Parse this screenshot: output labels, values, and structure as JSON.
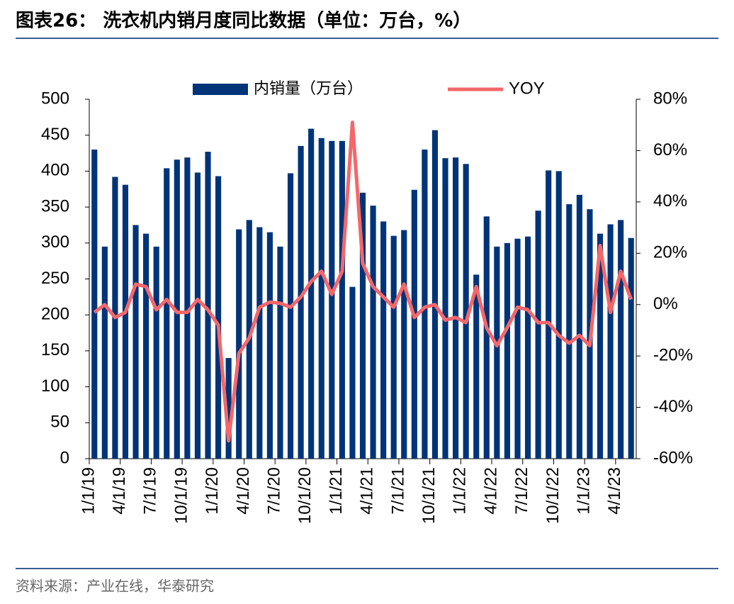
{
  "chart_data": {
    "type": "bar-line",
    "title": "图表26： 洗衣机内销月度同比数据（单位：万台，%）",
    "source": "资料来源：产业在线，华泰研究",
    "categories": [
      "1/1/19",
      null,
      null,
      "4/1/19",
      null,
      null,
      "7/1/19",
      null,
      null,
      "10/1/19",
      null,
      null,
      "1/1/20",
      null,
      null,
      "4/1/20",
      null,
      null,
      "7/1/20",
      null,
      null,
      "10/1/20",
      null,
      null,
      "1/1/21",
      null,
      null,
      "4/1/21",
      null,
      null,
      "7/1/21",
      null,
      null,
      "10/1/21",
      null,
      null,
      "1/1/22",
      null,
      null,
      "4/1/22",
      null,
      null,
      "7/1/22",
      null,
      null,
      "10/1/22",
      null,
      null,
      "1/1/23",
      null,
      null,
      "4/1/23",
      null
    ],
    "series": [
      {
        "name": "内销量（万台）",
        "color": "#003478",
        "type": "bar",
        "values": [
          430,
          295,
          392,
          381,
          325,
          313,
          295,
          404,
          416,
          419,
          398,
          427,
          393,
          140,
          319,
          332,
          322,
          315,
          295,
          397,
          435,
          459,
          446,
          442,
          442,
          239,
          370,
          352,
          330,
          310,
          318,
          374,
          430,
          457,
          418,
          419,
          410,
          256,
          337,
          295,
          300,
          306,
          309,
          345,
          401,
          400,
          354,
          367,
          347,
          313,
          326,
          332,
          307
        ]
      },
      {
        "name": "YOY",
        "color": "#f4676a",
        "type": "line",
        "axis": "y2",
        "values": [
          -3,
          0,
          -5,
          -3,
          8,
          7,
          -2,
          2,
          -3,
          -3,
          2,
          -2,
          -8,
          -53,
          -19,
          -13,
          -1,
          1,
          0.5,
          -1,
          3,
          9,
          13,
          4,
          13,
          71,
          16,
          7,
          3,
          -1,
          8,
          -5,
          -1,
          0,
          -6,
          -5,
          -7,
          7,
          -9,
          -16,
          -9,
          -1,
          -2,
          -7,
          -7,
          -12,
          -15,
          -12,
          -16,
          23,
          -3,
          13,
          2
        ]
      }
    ],
    "ylim": [
      0,
      500
    ],
    "yticks": [
      0,
      50,
      100,
      150,
      200,
      250,
      300,
      350,
      400,
      450,
      500
    ],
    "y2lim": [
      -60,
      80
    ],
    "y2ticks": [
      {
        "value": -60,
        "label": "-60%"
      },
      {
        "value": -40,
        "label": "-40%"
      },
      {
        "value": -20,
        "label": "-20%"
      },
      {
        "value": 0,
        "label": "0%"
      },
      {
        "value": 20,
        "label": "20%"
      },
      {
        "value": 40,
        "label": "40%"
      },
      {
        "value": 60,
        "label": "60%"
      },
      {
        "value": 80,
        "label": "80%"
      }
    ],
    "legend": "top",
    "grid": false
  }
}
